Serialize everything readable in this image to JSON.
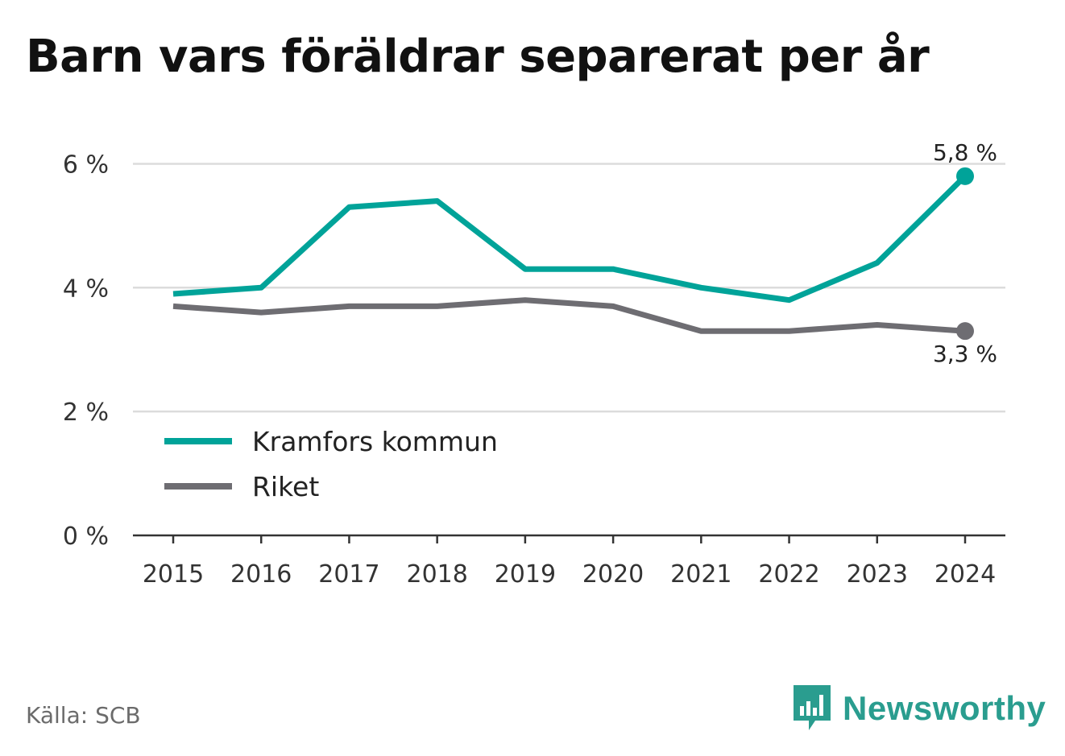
{
  "title": "Barn vars föräldrar separerat per år",
  "source": "Källa: SCB",
  "brand": {
    "name": "Newsworthy",
    "icon": "newsworthy-logo-icon",
    "color": "#2a9d8f"
  },
  "chart_data": {
    "type": "line",
    "x": [
      "2015",
      "2016",
      "2017",
      "2018",
      "2019",
      "2020",
      "2021",
      "2022",
      "2023",
      "2024"
    ],
    "ylim": [
      0,
      6.5
    ],
    "yticks": [
      {
        "value": 0,
        "label": "0 %"
      },
      {
        "value": 2,
        "label": "2 %"
      },
      {
        "value": 4,
        "label": "4 %"
      },
      {
        "value": 6,
        "label": "6 %"
      }
    ],
    "grid": true,
    "legend": "bottom-left",
    "series": [
      {
        "name": "Kramfors kommun",
        "color": "#00a399",
        "values": [
          3.9,
          4.0,
          5.3,
          5.4,
          4.3,
          4.3,
          4.0,
          3.8,
          4.4,
          5.8
        ],
        "end_label": "5,8 %"
      },
      {
        "name": "Riket",
        "color": "#6e6d72",
        "values": [
          3.7,
          3.6,
          3.7,
          3.7,
          3.8,
          3.7,
          3.3,
          3.3,
          3.4,
          3.3
        ],
        "end_label": "3,3 %"
      }
    ]
  }
}
